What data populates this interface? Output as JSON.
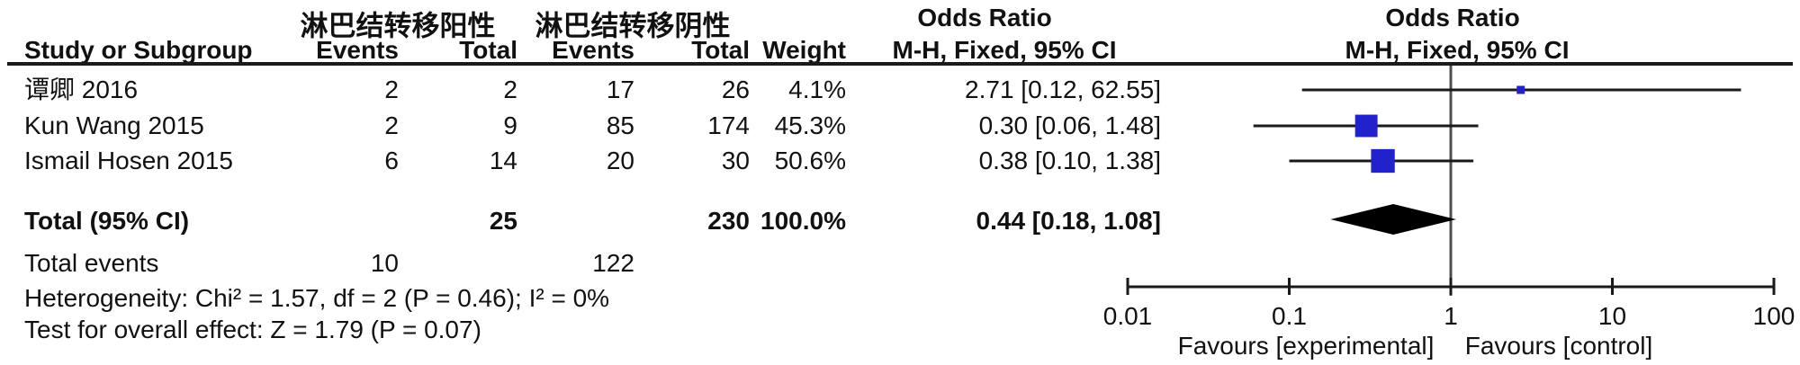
{
  "table": {
    "group1_header": "淋巴结转移阳性",
    "group2_header": "淋巴结转移阴性",
    "or_col_title": "Odds Ratio",
    "or_col_subtitle": "M-H, Fixed, 95% CI",
    "plot_col_title": "Odds Ratio",
    "plot_col_subtitle": "M-H, Fixed, 95% CI",
    "columns": {
      "study": "Study or Subgroup",
      "events1": "Events",
      "total1": "Total",
      "events2": "Events",
      "total2": "Total",
      "weight": "Weight"
    },
    "rows": [
      {
        "study": "谭卿 2016",
        "events1": "2",
        "total1": "2",
        "events2": "17",
        "total2": "26",
        "weight": "4.1%",
        "or_text": "2.71 [0.12, 62.55]"
      },
      {
        "study": "Kun Wang 2015",
        "events1": "2",
        "total1": "9",
        "events2": "85",
        "total2": "174",
        "weight": "45.3%",
        "or_text": "0.30 [0.06, 1.48]"
      },
      {
        "study": "Ismail Hosen 2015",
        "events1": "6",
        "total1": "14",
        "events2": "20",
        "total2": "30",
        "weight": "50.6%",
        "or_text": "0.38 [0.10, 1.38]"
      }
    ],
    "total_row": {
      "label": "Total (95% CI)",
      "total1": "25",
      "total2": "230",
      "weight": "100.0%",
      "or_text": "0.44 [0.18, 1.08]"
    },
    "total_events_row": {
      "label": "Total events",
      "events1": "10",
      "events2": "122"
    },
    "heterogeneity_line": "Heterogeneity: Chi² = 1.57, df = 2 (P = 0.46); I² = 0%",
    "overall_effect_line": "Test for overall effect: Z = 1.79 (P = 0.07)"
  },
  "chart_data": {
    "type": "forest",
    "effect_measure": "Odds Ratio, M-H, Fixed, 95% CI",
    "x_scale": "log10",
    "xlim": [
      0.01,
      100
    ],
    "null_line": 1,
    "ticks": [
      0.01,
      0.1,
      1,
      10,
      100
    ],
    "tick_labels": [
      "0.01",
      "0.1",
      "1",
      "10",
      "100"
    ],
    "studies": [
      {
        "name": "谭卿 2016",
        "or": 2.71,
        "ci_low": 0.12,
        "ci_high": 62.55,
        "weight_pct": 4.1
      },
      {
        "name": "Kun Wang 2015",
        "or": 0.3,
        "ci_low": 0.06,
        "ci_high": 1.48,
        "weight_pct": 45.3
      },
      {
        "name": "Ismail Hosen 2015",
        "or": 0.38,
        "ci_low": 0.1,
        "ci_high": 1.38,
        "weight_pct": 50.6
      }
    ],
    "total": {
      "or": 0.44,
      "ci_low": 0.18,
      "ci_high": 1.08
    },
    "axis_labels": {
      "left": "Favours [experimental]",
      "right": "Favours [control]"
    },
    "legend_position": "bottom",
    "grid": false,
    "colors": {
      "square": "#2222CC",
      "diamond": "#000000",
      "ci_line": "#1a1a1a",
      "null_line": "#4d4d4d"
    }
  }
}
